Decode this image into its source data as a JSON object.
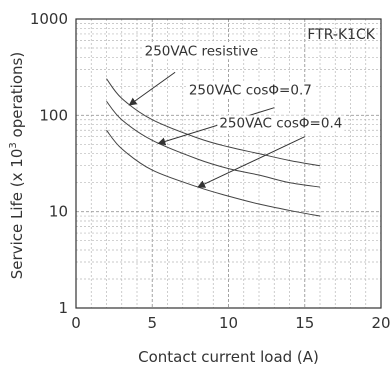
{
  "chart_data": {
    "type": "line",
    "title": "",
    "model_label": "FTR-K1CK",
    "xlabel": "Contact current load (A)",
    "ylabel": "Service Life  (x 10³  operations)",
    "ylabel_parts": {
      "prefix": "Service Life  (x 10",
      "sup": "3",
      "suffix": "  operations)"
    },
    "xlim": [
      0,
      20
    ],
    "ylim": [
      1,
      1000
    ],
    "yscale": "log",
    "grid": true,
    "x_ticks": [
      "0",
      "5",
      "10",
      "15",
      "20"
    ],
    "y_ticks": [
      "1",
      "10",
      "100",
      "1000"
    ],
    "series": [
      {
        "name": "250VAC resistive",
        "x": [
          2,
          3,
          5,
          8,
          10,
          12,
          14,
          16
        ],
        "y": [
          240,
          150,
          90,
          58,
          47,
          40,
          34,
          30
        ]
      },
      {
        "name": "250VAC cosΦ=0.7",
        "x": [
          2,
          3,
          5,
          8,
          10,
          12,
          14,
          16
        ],
        "y": [
          140,
          90,
          55,
          35,
          28,
          24,
          20,
          18
        ]
      },
      {
        "name": "250VAC cosΦ=0.4",
        "x": [
          2,
          3,
          5,
          8,
          10,
          12,
          14,
          16
        ],
        "y": [
          70,
          45,
          27,
          18,
          14.5,
          12,
          10.3,
          9
        ]
      }
    ]
  }
}
